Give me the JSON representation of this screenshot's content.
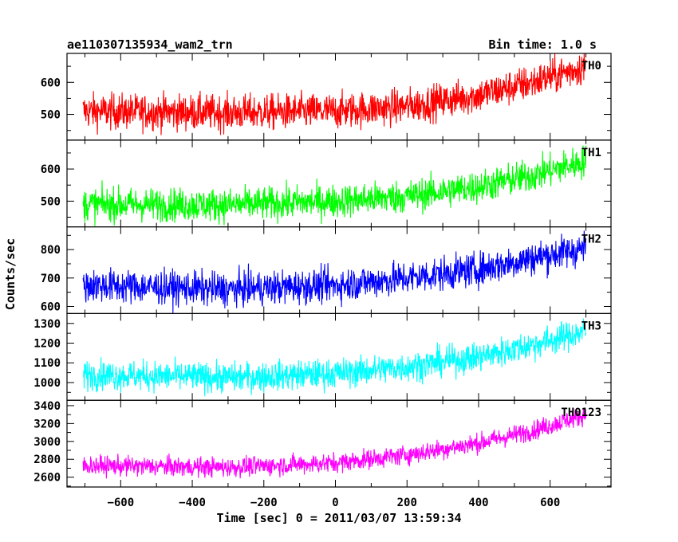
{
  "header": {
    "title": "ae110307135934_wam2_trn",
    "bin_time": "Bin time: 1.0 s"
  },
  "chart_data": {
    "type": "line",
    "title": "ae110307135934_wam2_trn",
    "subtitle": "Bin time: 1.0 s",
    "xlabel": "Time [sec] 0 = 2011/03/07 13:59:34",
    "ylabel": "Counts/sec",
    "xlim": [
      -750,
      770
    ],
    "x_ticks": [
      -600,
      -400,
      -200,
      0,
      200,
      400,
      600
    ],
    "x_start": -705,
    "x_end": 700,
    "x_step": 1,
    "grid": false,
    "panels": [
      {
        "name": "TH0",
        "color": "#ff0000",
        "ylim": [
          420,
          690
        ],
        "y_ticks": [
          500,
          600
        ],
        "trend": [
          [
            -705,
            510
          ],
          [
            -300,
            505
          ],
          [
            0,
            510
          ],
          [
            200,
            525
          ],
          [
            400,
            560
          ],
          [
            550,
            600
          ],
          [
            700,
            650
          ]
        ],
        "noise": 28
      },
      {
        "name": "TH1",
        "color": "#00ff00",
        "ylim": [
          420,
          690
        ],
        "y_ticks": [
          500,
          600
        ],
        "trend": [
          [
            -705,
            490
          ],
          [
            -300,
            488
          ],
          [
            0,
            500
          ],
          [
            200,
            515
          ],
          [
            400,
            545
          ],
          [
            550,
            580
          ],
          [
            700,
            625
          ]
        ],
        "noise": 26
      },
      {
        "name": "TH2",
        "color": "#0000ff",
        "ylim": [
          575,
          880
        ],
        "y_ticks": [
          600,
          700,
          800
        ],
        "trend": [
          [
            -705,
            675
          ],
          [
            -300,
            660
          ],
          [
            0,
            675
          ],
          [
            200,
            700
          ],
          [
            400,
            730
          ],
          [
            550,
            770
          ],
          [
            700,
            805
          ]
        ],
        "noise": 30
      },
      {
        "name": "TH3",
        "color": "#00ffff",
        "ylim": [
          910,
          1350
        ],
        "y_ticks": [
          1000,
          1100,
          1200,
          1300
        ],
        "trend": [
          [
            -705,
            1040
          ],
          [
            -300,
            1025
          ],
          [
            0,
            1045
          ],
          [
            200,
            1080
          ],
          [
            400,
            1130
          ],
          [
            550,
            1190
          ],
          [
            700,
            1260
          ]
        ],
        "noise": 38
      },
      {
        "name": "TH0123",
        "color": "#ff00ff",
        "ylim": [
          2490,
          3460
        ],
        "y_ticks": [
          2600,
          2800,
          3000,
          3200,
          3400
        ],
        "trend": [
          [
            -705,
            2730
          ],
          [
            -300,
            2710
          ],
          [
            0,
            2760
          ],
          [
            200,
            2850
          ],
          [
            400,
            2980
          ],
          [
            550,
            3120
          ],
          [
            700,
            3300
          ]
        ],
        "noise": 55
      }
    ]
  }
}
